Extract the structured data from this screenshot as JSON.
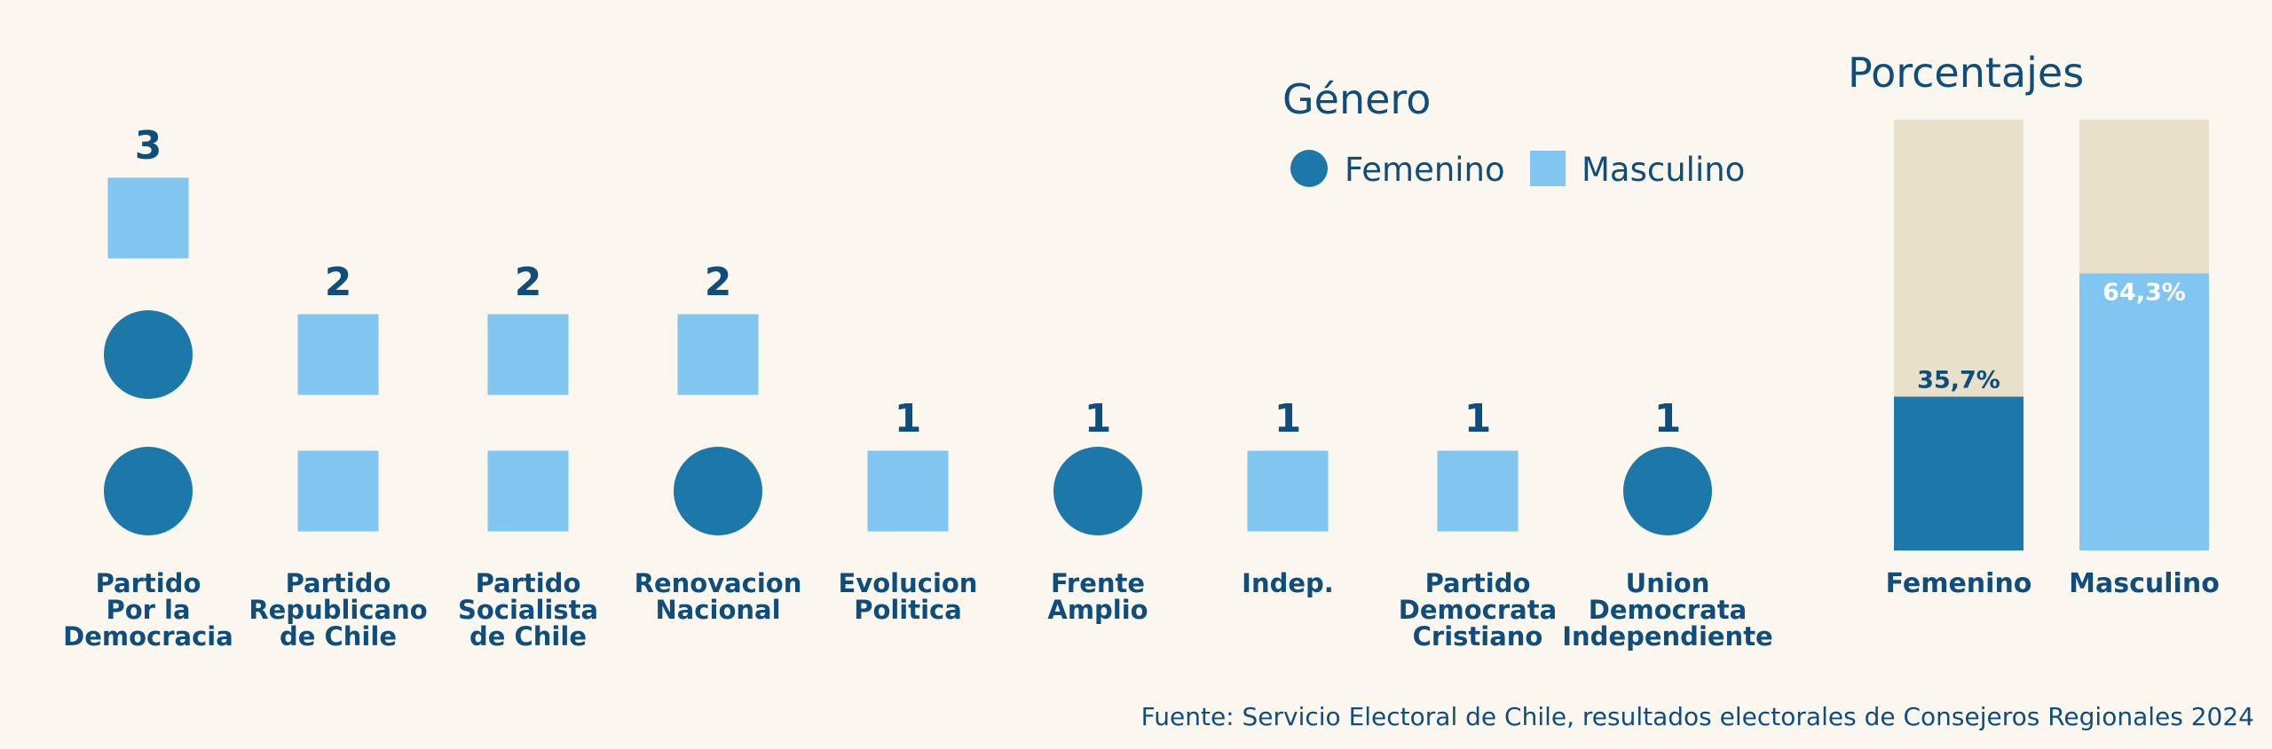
{
  "colors": {
    "femenino": "#1B78A8",
    "masculino": "#80C6F0",
    "remainder": "#E8E0C8",
    "text": "#0E4D7C",
    "background": "#FBF7EE"
  },
  "legend": {
    "title": "Género",
    "items": [
      {
        "label": "Femenino",
        "shape": "circle",
        "color_key": "femenino"
      },
      {
        "label": "Masculino",
        "shape": "square",
        "color_key": "masculino"
      }
    ]
  },
  "source": "Fuente: Servicio Electoral de Chile, resultados electorales de Consejeros Regionales 2024",
  "chart_data": [
    {
      "type": "pictogram",
      "title": "",
      "categories": [
        [
          "Partido",
          "Por la",
          "Democracia"
        ],
        [
          "Partido",
          "Republicano",
          "de Chile"
        ],
        [
          "Partido",
          "Socialista",
          "de Chile"
        ],
        [
          "Renovacion",
          "Nacional"
        ],
        [
          "Evolucion",
          "Politica"
        ],
        [
          "Frente",
          "Amplio"
        ],
        [
          "Indep."
        ],
        [
          "Partido",
          "Democrata",
          "Cristiano"
        ],
        [
          "Union",
          "Democrata",
          "Independiente"
        ]
      ],
      "totals": [
        3,
        2,
        2,
        2,
        1,
        1,
        1,
        1,
        1
      ],
      "units_bottom_to_top": [
        [
          "Femenino",
          "Femenino",
          "Masculino"
        ],
        [
          "Masculino",
          "Masculino"
        ],
        [
          "Masculino",
          "Masculino"
        ],
        [
          "Femenino",
          "Masculino"
        ],
        [
          "Masculino"
        ],
        [
          "Femenino"
        ],
        [
          "Masculino"
        ],
        [
          "Masculino"
        ],
        [
          "Femenino"
        ]
      ],
      "series": [
        {
          "name": "Femenino",
          "values": [
            2,
            0,
            0,
            1,
            0,
            1,
            0,
            0,
            1
          ]
        },
        {
          "name": "Masculino",
          "values": [
            1,
            2,
            2,
            1,
            1,
            0,
            1,
            1,
            0
          ]
        }
      ]
    },
    {
      "type": "bar",
      "title": "Porcentajes",
      "categories": [
        "Femenino",
        "Masculino"
      ],
      "values": [
        35.7,
        64.3
      ],
      "value_labels": [
        "35,7%",
        "64,3%"
      ],
      "ylim": [
        0,
        100
      ],
      "stacked_remainder": true
    }
  ]
}
